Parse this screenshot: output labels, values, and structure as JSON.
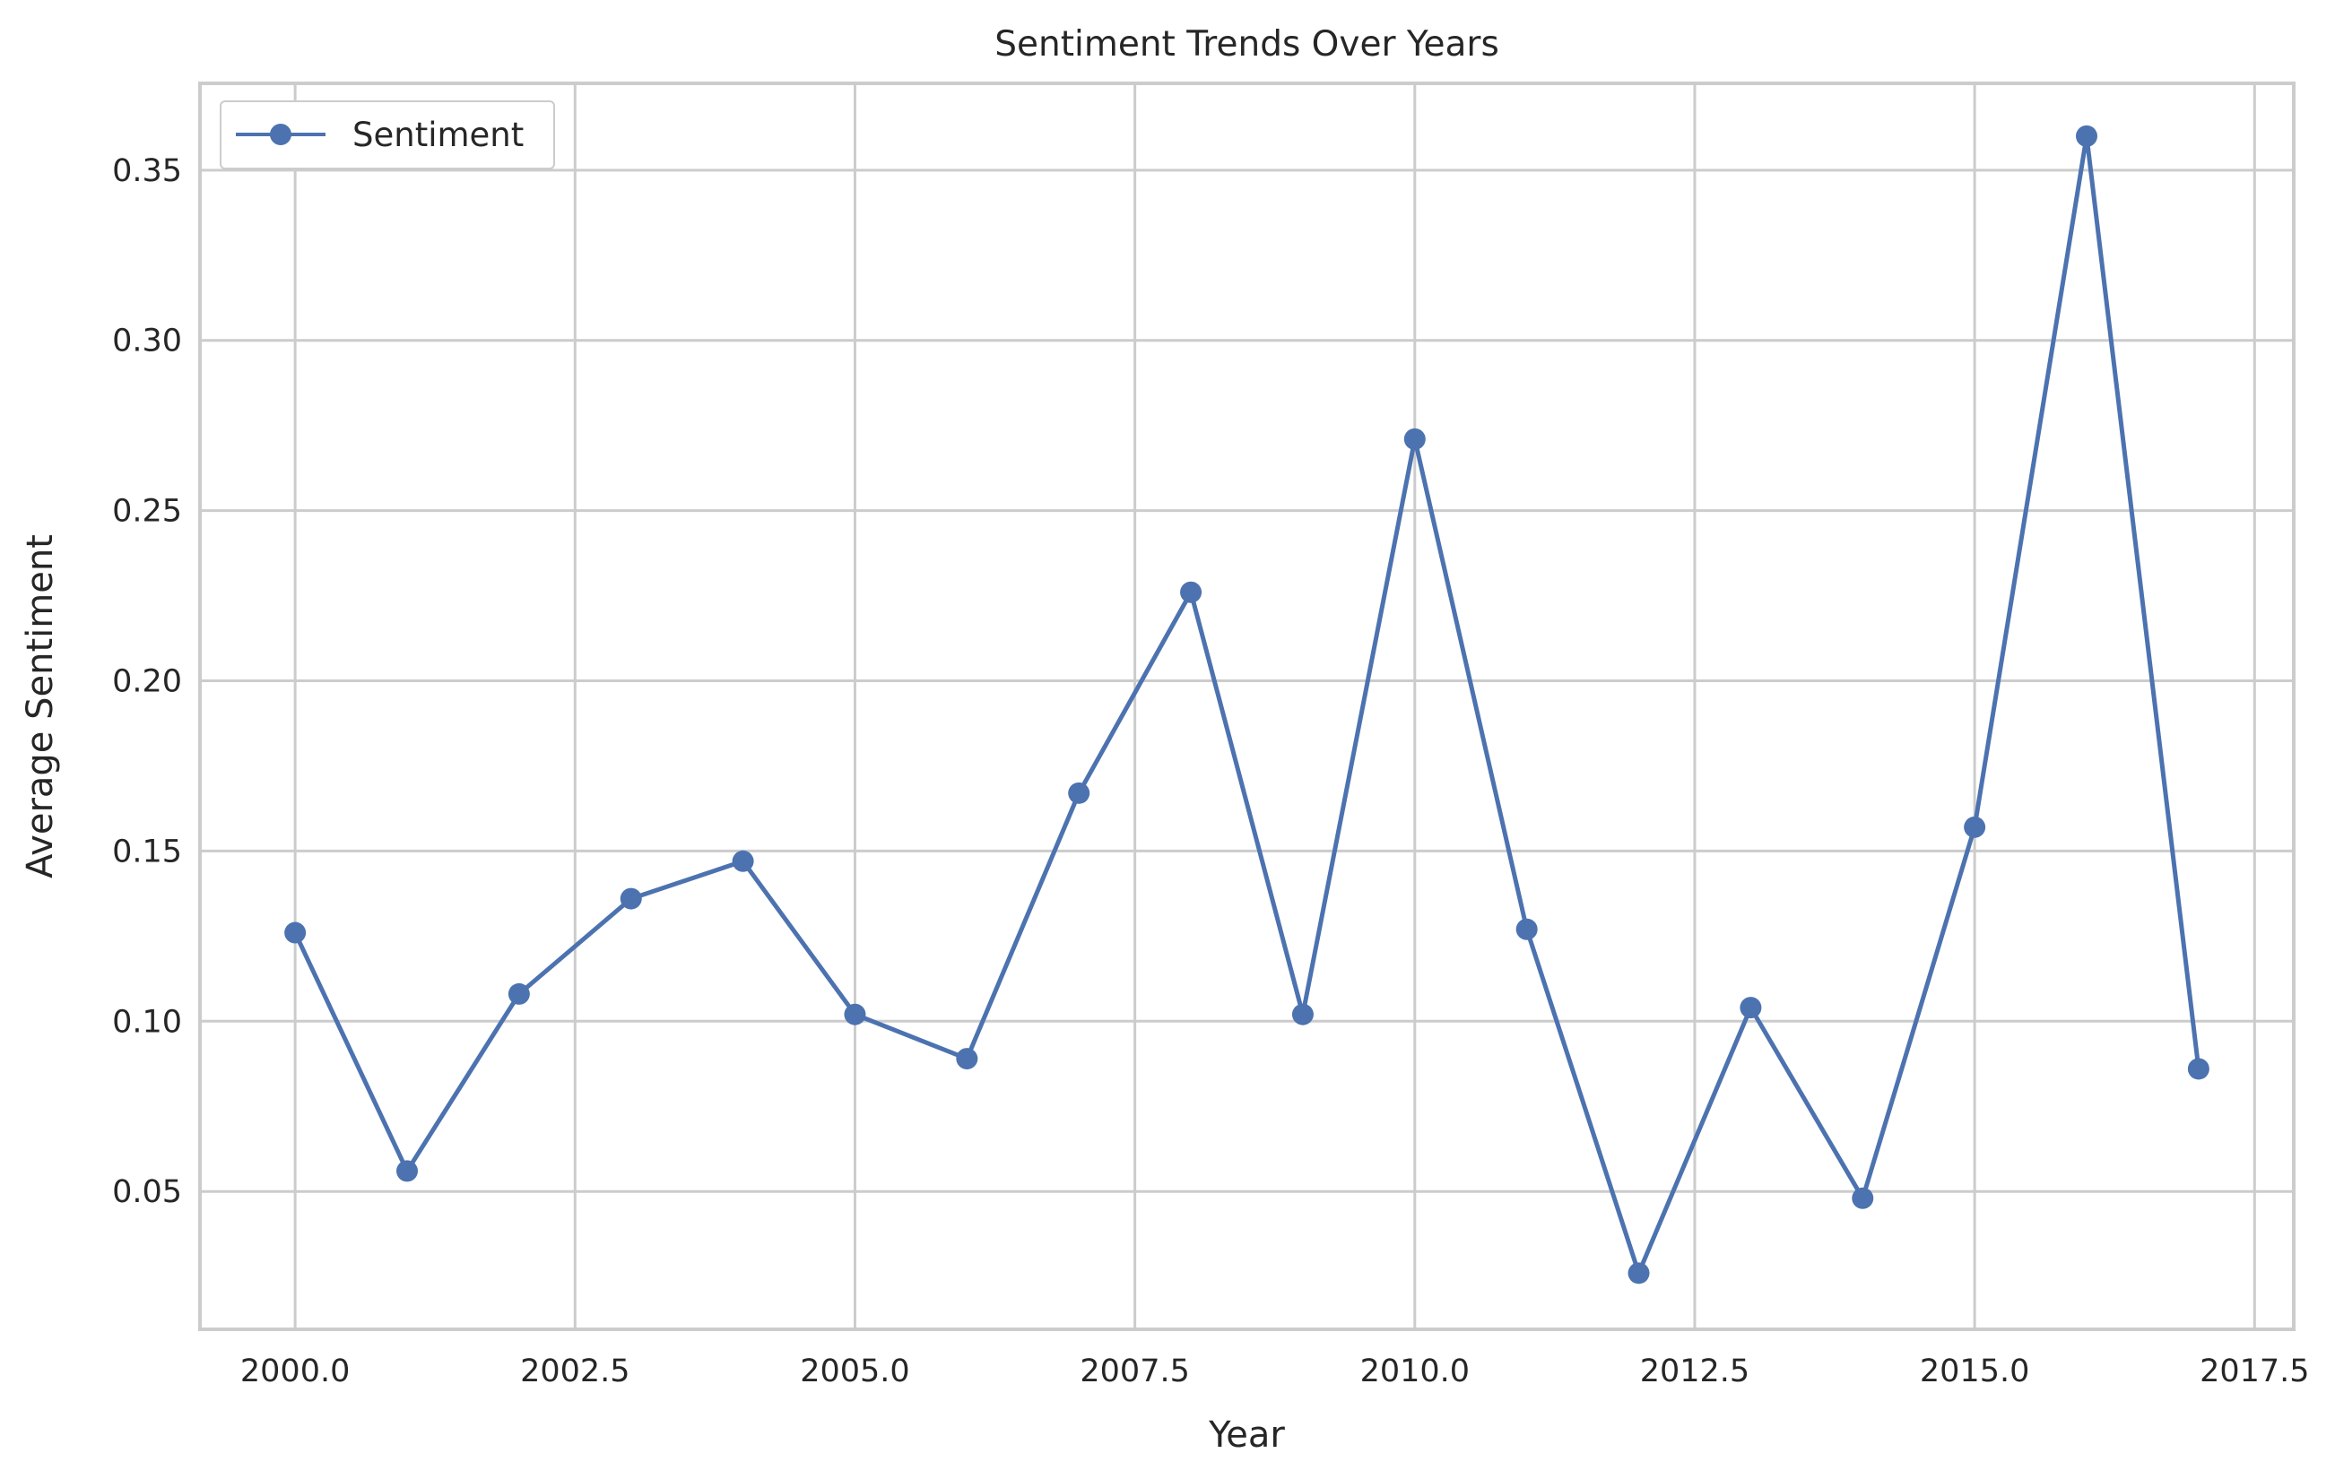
{
  "chart_data": {
    "type": "line",
    "title": "Sentiment Trends Over Years",
    "xlabel": "Year",
    "ylabel": "Average Sentiment",
    "xlim": [
      1999.15,
      2017.85
    ],
    "ylim": [
      0.0095,
      0.3755
    ],
    "x_ticks": [
      2000.0,
      2002.5,
      2005.0,
      2007.5,
      2010.0,
      2012.5,
      2015.0,
      2017.5
    ],
    "x_tick_labels": [
      "2000.0",
      "2002.5",
      "2005.0",
      "2007.5",
      "2010.0",
      "2012.5",
      "2015.0",
      "2017.5"
    ],
    "y_ticks": [
      0.05,
      0.1,
      0.15,
      0.2,
      0.25,
      0.3,
      0.35
    ],
    "y_tick_labels": [
      "0.05",
      "0.10",
      "0.15",
      "0.20",
      "0.25",
      "0.30",
      "0.35"
    ],
    "grid": true,
    "legend": {
      "placement": "top-left",
      "entries": [
        "Sentiment"
      ]
    },
    "series": [
      {
        "name": "Sentiment",
        "color": "#4c72b0",
        "marker": "circle",
        "x": [
          2000,
          2001,
          2002,
          2003,
          2004,
          2005,
          2006,
          2007,
          2008,
          2009,
          2010,
          2011,
          2012,
          2013,
          2014,
          2015,
          2016,
          2017
        ],
        "values": [
          0.126,
          0.056,
          0.108,
          0.136,
          0.147,
          0.102,
          0.089,
          0.167,
          0.226,
          0.102,
          0.271,
          0.127,
          0.026,
          0.104,
          0.048,
          0.157,
          0.36,
          0.086
        ]
      }
    ]
  },
  "colors": {
    "axes_edge": "#cccccc",
    "grid": "#cccccc",
    "text": "#262626",
    "background": "#ffffff"
  }
}
